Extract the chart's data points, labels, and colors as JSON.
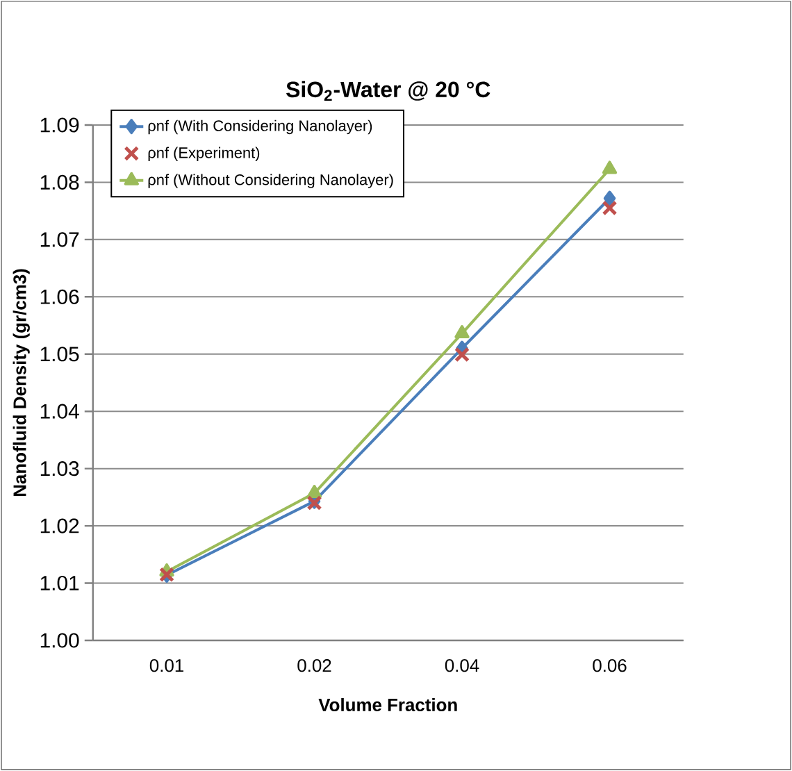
{
  "chart_data": {
    "type": "line",
    "title": "SiO$_{2}$-Water @ 20 °C",
    "xlabel": "Volume Fraction",
    "ylabel": "Nanofluid Density (gr/cm3)",
    "categories": [
      "0.01",
      "0.02",
      "0.04",
      "0.06"
    ],
    "series": [
      {
        "name": "ρnf (With Considering Nanolayer)",
        "color": "#4a7ebb",
        "marker": "diamond",
        "values": [
          1.0114,
          1.0243,
          1.051,
          1.0772
        ]
      },
      {
        "name": "ρnf (Experiment)",
        "type": "scatter",
        "color": "#c0504d",
        "marker": "cross",
        "values": [
          1.0115,
          1.024,
          1.0499,
          1.0755
        ]
      },
      {
        "name": "ρnf (Without Considering Nanolayer)",
        "color": "#9bbb59",
        "marker": "triangle",
        "values": [
          1.012,
          1.0257,
          1.0536,
          1.0823
        ]
      }
    ],
    "ylim": [
      1.0,
      1.09
    ],
    "yticks": [
      {
        "value": 1.0,
        "label": "1.00"
      },
      1.01,
      1.02,
      1.03,
      1.04,
      1.05,
      1.06,
      1.07,
      1.08,
      1.09
    ],
    "grid": "y",
    "legend": "top left"
  }
}
